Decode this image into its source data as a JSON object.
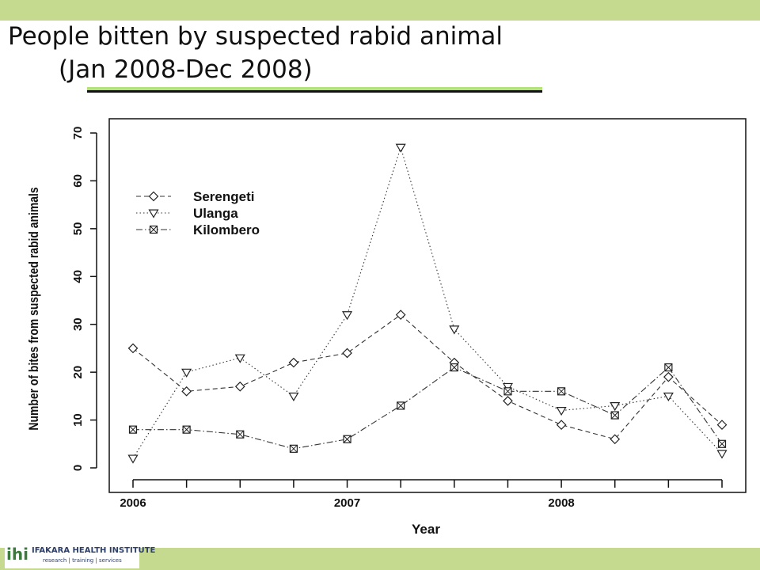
{
  "slide": {
    "title_line1": "People bitten by suspected rabid animal",
    "title_line2": "(Jan 2008-Dec 2008)",
    "bar_color": "#c5d98f",
    "underline_color": "#b2e37a"
  },
  "logo": {
    "mark": "ihi",
    "name": "IFAKARA HEALTH INSTITUTE",
    "tagline": "research | training | services"
  },
  "chart_data": {
    "type": "line",
    "xlabel": "Year",
    "ylabel": "Number of bites from suspected rabid animals",
    "x_ticks": [
      "2006",
      "2007",
      "2008"
    ],
    "y_ticks": [
      "0",
      "10",
      "20",
      "30",
      "40",
      "50",
      "60",
      "70"
    ],
    "ylim": [
      0,
      70
    ],
    "legend_position": "top-left",
    "grid": false,
    "series": [
      {
        "name": "Serengeti",
        "marker": "diamond",
        "line": "dashed",
        "values": [
          25,
          16,
          17,
          22,
          24,
          32,
          22,
          14,
          9,
          6,
          19,
          9
        ]
      },
      {
        "name": "Ulanga",
        "marker": "triangle-down",
        "line": "dotted",
        "values": [
          2,
          20,
          23,
          15,
          32,
          67,
          29,
          17,
          12,
          13,
          15,
          3
        ]
      },
      {
        "name": "Kilombero",
        "marker": "square-x",
        "line": "dashdot",
        "values": [
          8,
          8,
          7,
          4,
          6,
          13,
          21,
          16,
          16,
          11,
          21,
          5
        ]
      }
    ]
  }
}
